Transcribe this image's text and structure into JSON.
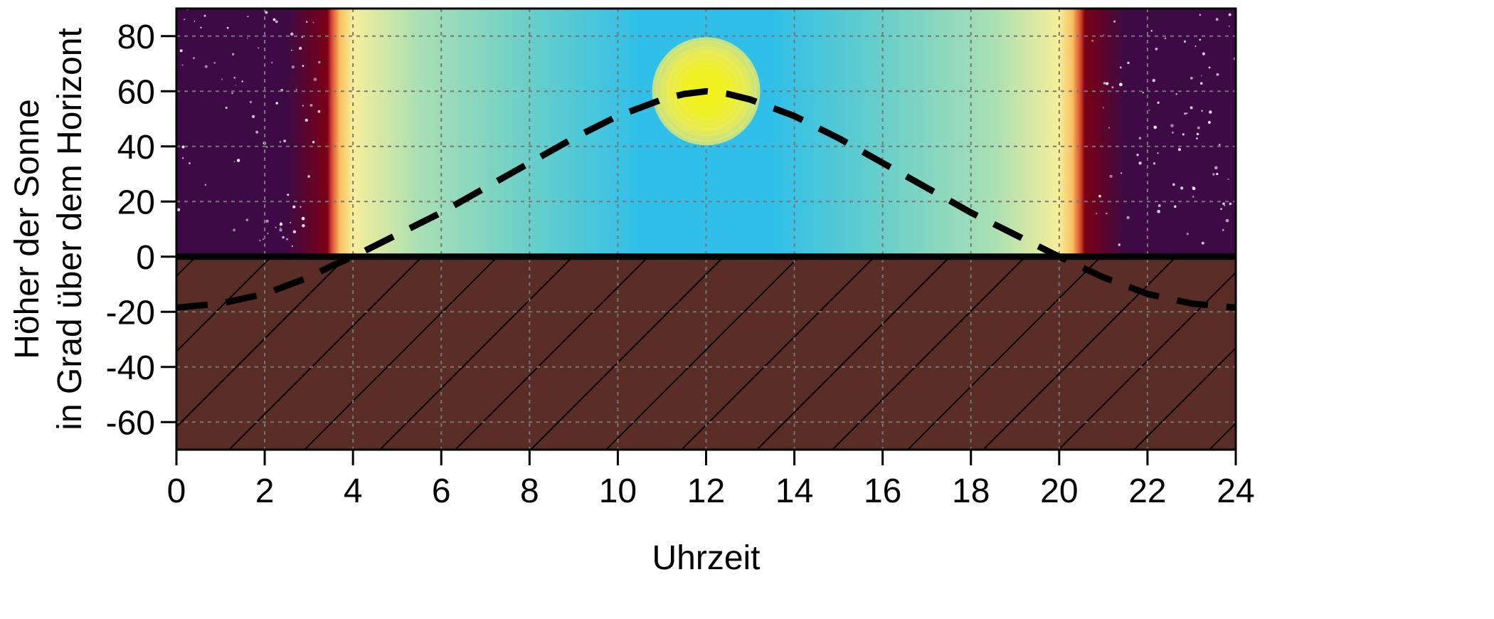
{
  "chart_data": {
    "type": "line",
    "xlabel": "Uhrzeit",
    "ylabel_line1": "Höher der Sonne",
    "ylabel_line2": "in Grad über dem Horizont",
    "xlim": [
      0,
      24
    ],
    "ylim": [
      -70,
      90
    ],
    "x_ticks": [
      0,
      2,
      4,
      6,
      8,
      10,
      12,
      14,
      16,
      18,
      20,
      22,
      24
    ],
    "y_ticks": [
      -60,
      -40,
      -20,
      0,
      20,
      40,
      60,
      80
    ],
    "grid": true,
    "sunrise_hour": 3.5,
    "sunset_hour": 20.5,
    "sun_position": {
      "x": 12,
      "y": 60
    },
    "series": [
      {
        "style": "dashed",
        "x": [
          0,
          1,
          2,
          3,
          3.5,
          4,
          4.5,
          5,
          6,
          7,
          8,
          9,
          10,
          11,
          11.5,
          12,
          12.5,
          13,
          14,
          15,
          16,
          17,
          18,
          19,
          19.5,
          20,
          21,
          22,
          23,
          24
        ],
        "y": [
          -18.5,
          -17,
          -13.5,
          -7.5,
          -3.5,
          0,
          4,
          8,
          16,
          25,
          34,
          43,
          51,
          57,
          59,
          60,
          59,
          57,
          51,
          43,
          34,
          25,
          16,
          8,
          4,
          0,
          -7.5,
          -13.5,
          -17,
          -18.5
        ]
      }
    ]
  },
  "colors": {
    "night": "#3d0a45",
    "dusk_red": "#7a0016",
    "dawn_yellow": "#f6ee9a",
    "sky_blue": "#30bfe8",
    "ground": "#5a2d27",
    "sun_core": "#f0f020"
  }
}
